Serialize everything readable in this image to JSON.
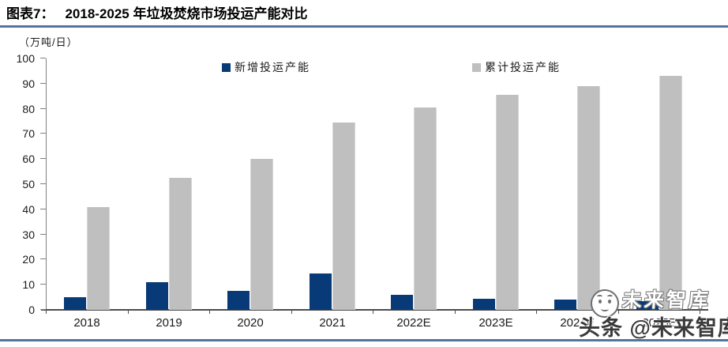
{
  "header": {
    "label": "图表7：",
    "title": "2018-2025 年垃圾焚烧市场投运产能对比"
  },
  "unit_label": "（万吨/日）",
  "chart_data": {
    "type": "bar",
    "title": "2018-2025 年垃圾焚烧市场投运产能对比",
    "unit": "万吨/日",
    "categories": [
      "2018",
      "2019",
      "2020",
      "2021",
      "2022E",
      "2023E",
      "2024E",
      "2025E"
    ],
    "series": [
      {
        "name": "新增投运产能",
        "color": "#083A77",
        "values": [
          5,
          11,
          7.5,
          14.5,
          6,
          4.5,
          4,
          3.5
        ]
      },
      {
        "name": "累计投运产能",
        "color": "#BFBFBF",
        "values": [
          41,
          52.5,
          60,
          74.5,
          80.5,
          85.5,
          89,
          93
        ]
      }
    ],
    "ylim": [
      0,
      100
    ],
    "ytick_step": 10,
    "grid": false,
    "legend_position": "top-center"
  },
  "watermark": {
    "ghost_text": "未来智库",
    "main_text": "头条 @未来智库"
  },
  "colors": {
    "new_capacity_bar": "#083A77",
    "cumulative_capacity_bar": "#BFBFBF",
    "rule_line": "#55739F",
    "y_axis": "#808080",
    "x_axis": "#4d4d4d"
  }
}
